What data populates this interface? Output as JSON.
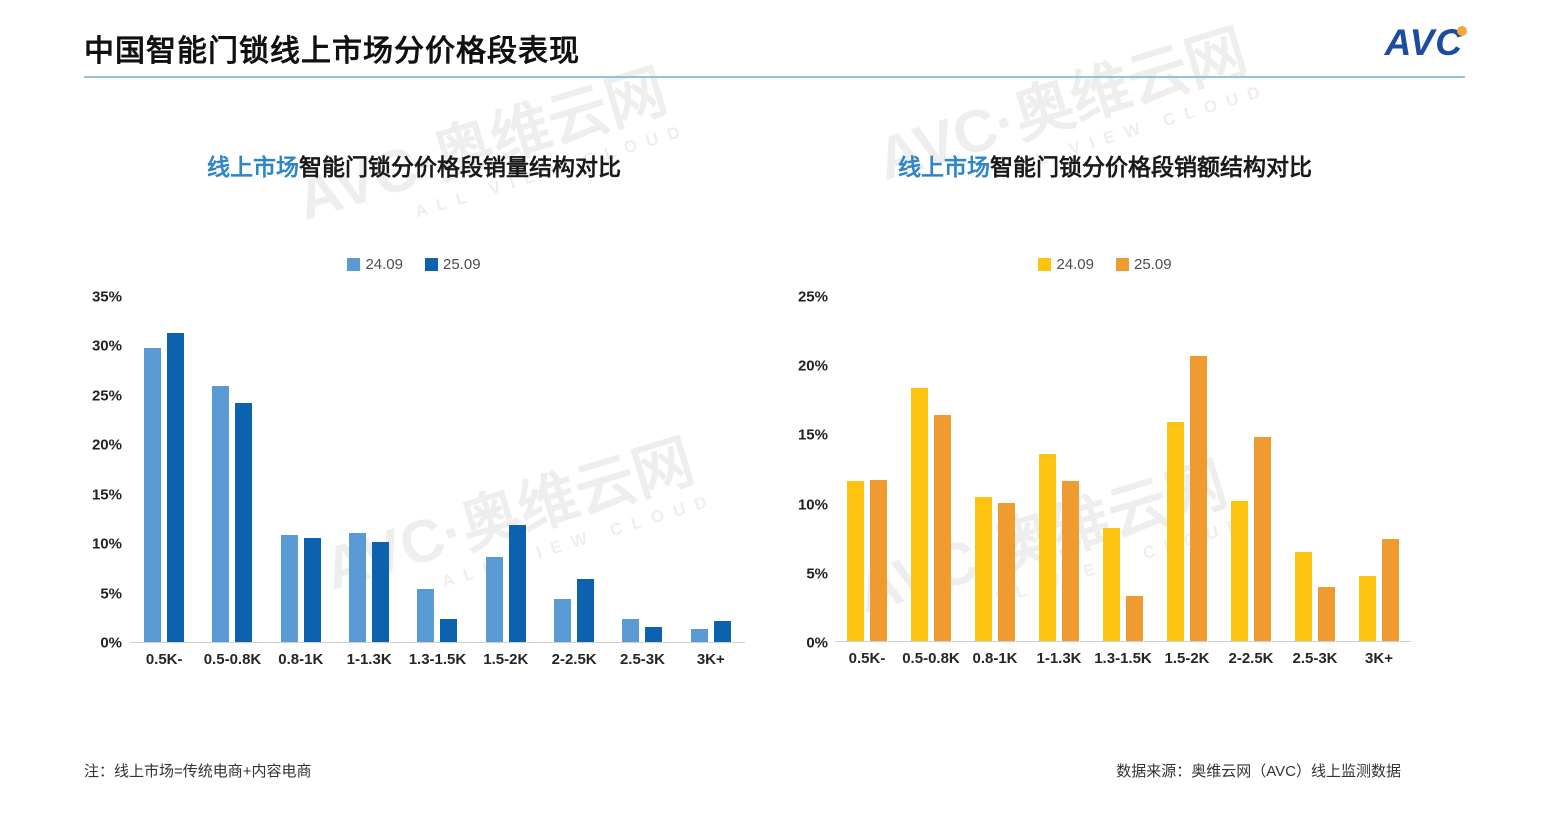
{
  "page": {
    "title": "中国智能门锁线上市场分价格段表现",
    "logo_text": "AVC",
    "note_left": "注：线上市场=传统电商+内容电商",
    "source_right": "数据来源：奥维云网（AVC）线上监测数据",
    "watermark": {
      "main": "AVC·奥维云网",
      "sub": "ALL VIEW CLOUD"
    }
  },
  "colors": {
    "series_24_volume": "#5b9bd5",
    "series_25_volume": "#0d62b0",
    "series_24_value": "#fcc40e",
    "series_25_value": "#ee9c31",
    "title_highlight": "#2f86c7",
    "logo_navy": "#1b4c9f",
    "logo_dot_orange": "#f2a93b",
    "header_line": "#97c0dc",
    "baseline": "#cfcfcf"
  },
  "chart_data": [
    {
      "type": "bar",
      "title_highlight": "线上市场",
      "title_rest": "智能门锁分价格段销量结构对比",
      "categories": [
        "0.5K-",
        "0.5-0.8K",
        "0.8-1K",
        "1-1.3K",
        "1.3-1.5K",
        "1.5-2K",
        "2-2.5K",
        "2.5-3K",
        "3K+"
      ],
      "series": [
        {
          "name": "24.09",
          "color": "#5b9bd5",
          "values": [
            29.8,
            26.0,
            10.9,
            11.1,
            5.4,
            8.6,
            4.4,
            2.3,
            1.3
          ]
        },
        {
          "name": "25.09",
          "color": "#0d62b0",
          "values": [
            31.3,
            24.2,
            10.6,
            10.1,
            2.3,
            11.9,
            6.4,
            1.5,
            2.1
          ]
        }
      ],
      "xlabel": "",
      "ylabel": "",
      "ylim": [
        0,
        35
      ],
      "yticks": [
        0,
        5,
        10,
        15,
        20,
        25,
        30,
        35
      ],
      "grid": false,
      "legend_position": "top"
    },
    {
      "type": "bar",
      "title_highlight": "线上市场",
      "title_rest": "智能门锁分价格段销额结构对比",
      "categories": [
        "0.5K-",
        "0.5-0.8K",
        "0.8-1K",
        "1-1.3K",
        "1.3-1.5K",
        "1.5-2K",
        "2-2.5K",
        "2.5-3K",
        "3K+"
      ],
      "series": [
        {
          "name": "24.09",
          "color": "#fcc40e",
          "values": [
            11.6,
            18.4,
            10.5,
            13.6,
            8.2,
            15.9,
            10.2,
            6.5,
            4.7
          ]
        },
        {
          "name": "25.09",
          "color": "#ee9c31",
          "values": [
            11.7,
            16.4,
            10.0,
            11.6,
            3.3,
            20.7,
            14.8,
            3.9,
            7.4
          ]
        }
      ],
      "xlabel": "",
      "ylabel": "",
      "ylim": [
        0,
        25
      ],
      "yticks": [
        0,
        5,
        10,
        15,
        20,
        25
      ],
      "grid": false,
      "legend_position": "top"
    }
  ]
}
